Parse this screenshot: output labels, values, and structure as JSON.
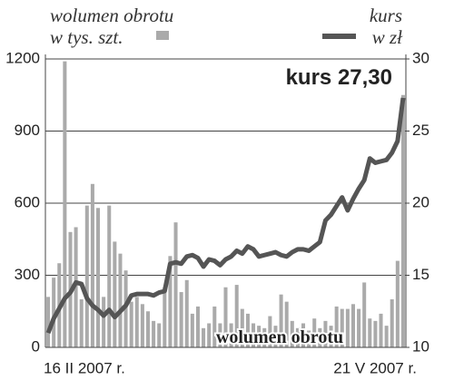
{
  "chart_data": {
    "type": "bar-line",
    "categories": [
      "16 II 2007 r.",
      null,
      null,
      null,
      null,
      null,
      null,
      null,
      null,
      null,
      null,
      null,
      null,
      null,
      null,
      null,
      null,
      null,
      null,
      null,
      null,
      null,
      null,
      null,
      null,
      null,
      null,
      null,
      null,
      null,
      null,
      null,
      null,
      null,
      null,
      null,
      null,
      null,
      null,
      null,
      null,
      null,
      null,
      null,
      null,
      null,
      null,
      null,
      null,
      null,
      null,
      null,
      null,
      null,
      null,
      null,
      null,
      null,
      null,
      null,
      null,
      null,
      null,
      null,
      "21 V 2007 r."
    ],
    "series": [
      {
        "name": "wolumen obrotu",
        "type": "bar",
        "color": "#aaaaaa",
        "values": [
          210,
          290,
          350,
          1190,
          480,
          500,
          200,
          590,
          680,
          580,
          210,
          590,
          440,
          390,
          320,
          190,
          210,
          180,
          150,
          110,
          100,
          250,
          380,
          520,
          230,
          280,
          140,
          170,
          80,
          100,
          170,
          100,
          250,
          100,
          260,
          160,
          140,
          100,
          90,
          80,
          130,
          90,
          220,
          190,
          110,
          80,
          100,
          70,
          120,
          80,
          110,
          90,
          170,
          160,
          160,
          180,
          160,
          270,
          120,
          110,
          140,
          90,
          200,
          360,
          1050
        ]
      },
      {
        "name": "kurs",
        "type": "line",
        "axis": "y2",
        "color": "#555555",
        "values": [
          11.0,
          12.0,
          12.7,
          13.4,
          13.8,
          14.5,
          14.4,
          13.4,
          12.9,
          12.6,
          12.2,
          12.6,
          12.1,
          12.5,
          12.9,
          13.6,
          13.7,
          13.7,
          13.7,
          13.6,
          13.8,
          13.9,
          15.8,
          15.9,
          15.8,
          16.3,
          16.4,
          16.2,
          15.6,
          16.1,
          16.0,
          15.7,
          16.1,
          16.3,
          16.7,
          16.5,
          17.0,
          16.8,
          16.3,
          16.4,
          16.5,
          16.6,
          16.4,
          16.3,
          16.6,
          16.8,
          16.8,
          16.7,
          17.0,
          17.3,
          18.8,
          19.2,
          19.8,
          20.4,
          19.5,
          20.3,
          21.0,
          21.6,
          23.1,
          22.8,
          22.9,
          23.0,
          23.5,
          24.3,
          27.3
        ]
      }
    ],
    "ylabel": "w tys. szt.",
    "y2label": "w zł",
    "ylim": [
      0,
      1200
    ],
    "yticks": [
      0,
      300,
      600,
      900,
      1200
    ],
    "y2lim": [
      10,
      30
    ],
    "y2ticks": [
      10,
      15,
      20,
      25,
      30
    ],
    "grid": true,
    "annotations": [
      "kurs 27,30",
      "wolumen obrotu"
    ]
  }
}
